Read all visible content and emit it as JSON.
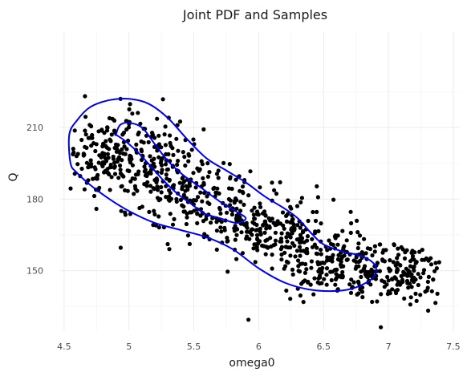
{
  "chart_data": {
    "type": "scatter",
    "title": "Joint PDF and Samples",
    "xlabel": "omega0",
    "ylabel": "Q",
    "xlim": [
      4.47,
      7.55
    ],
    "ylim": [
      125,
      250
    ],
    "xticks": [
      4.5,
      5,
      5.5,
      6,
      6.5,
      7,
      7.5
    ],
    "xtick_labels": [
      "4.5",
      "5",
      "5.5",
      "6",
      "6.5",
      "7",
      "7.5"
    ],
    "yticks": [
      150,
      180,
      210
    ],
    "ytick_labels": [
      "150",
      "180",
      "210"
    ],
    "grid": true,
    "point_color": "#000000",
    "contour_color": "#0000ee",
    "sample_trend": {
      "n_points": 1000,
      "x_range": [
        4.55,
        7.4
      ],
      "points_note_visible": false,
      "centers": [
        {
          "x": 4.75,
          "y": 199,
          "sx": 0.14,
          "sy": 8
        },
        {
          "x": 5.0,
          "y": 200,
          "sx": 0.18,
          "sy": 10
        },
        {
          "x": 5.3,
          "y": 190,
          "sx": 0.18,
          "sy": 10
        },
        {
          "x": 5.6,
          "y": 180,
          "sx": 0.18,
          "sy": 9
        },
        {
          "x": 5.9,
          "y": 172,
          "sx": 0.18,
          "sy": 8
        },
        {
          "x": 6.2,
          "y": 163,
          "sx": 0.18,
          "sy": 8
        },
        {
          "x": 6.5,
          "y": 155,
          "sx": 0.18,
          "sy": 8
        },
        {
          "x": 6.8,
          "y": 150,
          "sx": 0.18,
          "sy": 7
        },
        {
          "x": 7.15,
          "y": 148,
          "sx": 0.15,
          "sy": 6
        }
      ]
    },
    "contours": [
      {
        "name": "outer",
        "points": [
          [
            4.54,
            207
          ],
          [
            4.6,
            213
          ],
          [
            4.7,
            218.5
          ],
          [
            4.85,
            221.5
          ],
          [
            5.0,
            222
          ],
          [
            5.15,
            220
          ],
          [
            5.3,
            214
          ],
          [
            5.45,
            205
          ],
          [
            5.6,
            197
          ],
          [
            5.75,
            192
          ],
          [
            5.9,
            187
          ],
          [
            6.05,
            181
          ],
          [
            6.2,
            176
          ],
          [
            6.3,
            172
          ],
          [
            6.4,
            166
          ],
          [
            6.5,
            161
          ],
          [
            6.65,
            158
          ],
          [
            6.8,
            156
          ],
          [
            6.9,
            152
          ],
          [
            6.88,
            147
          ],
          [
            6.75,
            143
          ],
          [
            6.6,
            141.5
          ],
          [
            6.4,
            142
          ],
          [
            6.2,
            145
          ],
          [
            6.0,
            151
          ],
          [
            5.8,
            159
          ],
          [
            5.6,
            164
          ],
          [
            5.4,
            167
          ],
          [
            5.2,
            170
          ],
          [
            5.0,
            175
          ],
          [
            4.85,
            180
          ],
          [
            4.7,
            186
          ],
          [
            4.6,
            191
          ],
          [
            4.55,
            195
          ]
        ]
      },
      {
        "name": "inner",
        "points": [
          [
            4.9,
            207
          ],
          [
            4.93,
            211
          ],
          [
            5.0,
            212
          ],
          [
            5.1,
            210
          ],
          [
            5.2,
            203
          ],
          [
            5.3,
            196
          ],
          [
            5.42,
            190
          ],
          [
            5.55,
            185
          ],
          [
            5.7,
            179
          ],
          [
            5.82,
            175
          ],
          [
            5.9,
            172
          ],
          [
            5.83,
            170
          ],
          [
            5.7,
            172
          ],
          [
            5.58,
            174
          ],
          [
            5.48,
            178
          ],
          [
            5.38,
            182
          ],
          [
            5.28,
            187
          ],
          [
            5.18,
            193
          ],
          [
            5.08,
            199
          ],
          [
            4.98,
            204
          ],
          [
            4.9,
            207
          ]
        ]
      }
    ]
  }
}
